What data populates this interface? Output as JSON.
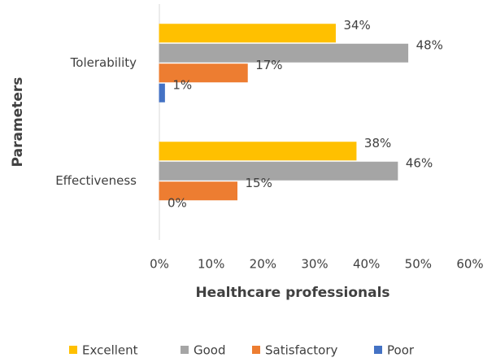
{
  "chart_data": {
    "type": "hbar",
    "y_label": "Parameters",
    "x_label": "Healthcare professionals",
    "categories": [
      "Tolerability",
      "Effectiveness"
    ],
    "series": [
      {
        "name": "Excellent",
        "color": "#FFC000",
        "values": [
          34,
          38
        ],
        "value_labels": [
          "34%",
          "38%"
        ]
      },
      {
        "name": "Good",
        "color": "#A5A5A5",
        "values": [
          48,
          46
        ],
        "value_labels": [
          "48%",
          "46%"
        ]
      },
      {
        "name": "Satisfactory",
        "color": "#ED7D31",
        "values": [
          17,
          15
        ],
        "value_labels": [
          "17%",
          "15%"
        ]
      },
      {
        "name": "Poor",
        "color": "#4472C4",
        "values": [
          1,
          0
        ],
        "value_labels": [
          "1%",
          "0%"
        ]
      }
    ],
    "xlim": [
      0,
      60
    ],
    "xticks": [
      {
        "value": 0,
        "label": "0%"
      },
      {
        "value": 10,
        "label": "10%"
      },
      {
        "value": 20,
        "label": "20%"
      },
      {
        "value": 30,
        "label": "30%"
      },
      {
        "value": 40,
        "label": "40%"
      },
      {
        "value": 50,
        "label": "50%"
      },
      {
        "value": 60,
        "label": "60%"
      }
    ],
    "grid": false,
    "legend": "bottom"
  }
}
